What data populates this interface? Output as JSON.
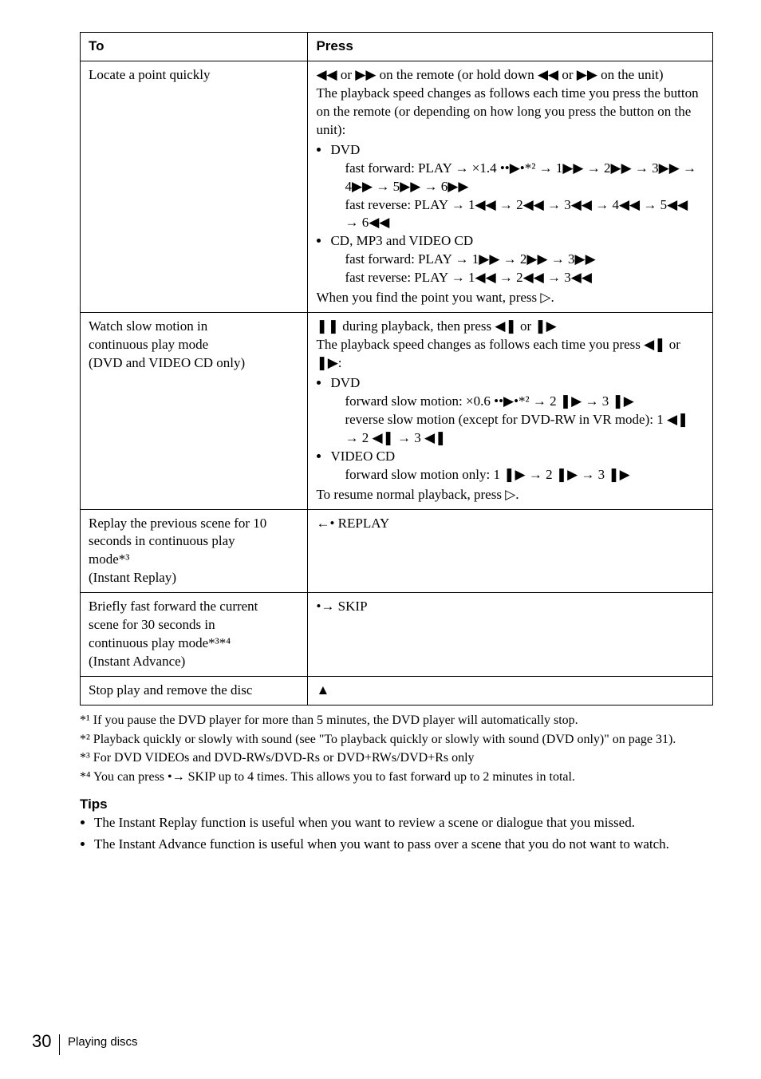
{
  "table": {
    "header": {
      "to": "To",
      "press": "Press"
    },
    "rows": [
      {
        "to": "Locate a point quickly",
        "press_intro1": "◀◀ or ▶▶ on the remote (or hold down ◀◀ or ▶▶ on the unit)",
        "press_intro2": "The playback speed changes as follows each time you press the button on the remote (or depending on how long you press the button on the unit):",
        "bullets": [
          {
            "label": "DVD",
            "lines": [
              "fast forward: PLAY → ×1.4 ••▶•*² → 1▶▶ → 2▶▶ → 3▶▶ → 4▶▶ → 5▶▶ → 6▶▶",
              "fast reverse: PLAY → 1◀◀ → 2◀◀ → 3◀◀ → 4◀◀ → 5◀◀ → 6◀◀"
            ]
          },
          {
            "label": "CD, MP3 and VIDEO CD",
            "lines": [
              "fast forward: PLAY → 1▶▶ → 2▶▶ → 3▶▶",
              "fast reverse: PLAY → 1◀◀ → 2◀◀ → 3◀◀"
            ]
          }
        ],
        "press_outro": "When you find the point you want, press ▷."
      },
      {
        "to_lines": [
          "Watch slow motion in",
          "continuous play mode",
          "(DVD and VIDEO CD only)"
        ],
        "press_intro1": "❚❚ during playback, then press ◀❚ or ❚▶",
        "press_intro2": "The playback speed changes as follows each time you press ◀❚ or ❚▶:",
        "bullets": [
          {
            "label": "DVD",
            "lines": [
              "forward slow motion: ×0.6 ••▶•*² → 2 ❚▶ → 3 ❚▶",
              "reverse slow motion (except for DVD-RW in VR mode): 1 ◀❚ → 2 ◀❚ → 3 ◀❚"
            ]
          },
          {
            "label": "VIDEO CD",
            "lines": [
              "forward slow motion only: 1 ❚▶ → 2 ❚▶ → 3 ❚▶"
            ]
          }
        ],
        "press_outro": "To resume normal playback, press ▷."
      },
      {
        "to_lines": [
          "Replay the previous scene for 10",
          "seconds in continuous play",
          "mode*³",
          "(Instant Replay)"
        ],
        "press_simple": "←• REPLAY"
      },
      {
        "to_lines": [
          "Briefly fast forward the current",
          "scene  for 30 seconds in",
          "continuous play mode*³*⁴",
          "(Instant Advance)"
        ],
        "press_simple": "•→ SKIP"
      },
      {
        "to": "Stop play and remove the disc",
        "press_simple": "▲"
      }
    ]
  },
  "footnotes": [
    "*¹ If you pause the DVD player for more than 5 minutes, the DVD player will automatically stop.",
    "*² Playback quickly or slowly with sound (see \"To playback quickly or slowly with sound (DVD only)\" on page 31).",
    "*³ For DVD VIDEOs and DVD-RWs/DVD-Rs or DVD+RWs/DVD+Rs only",
    "*⁴ You can press •→ SKIP up to 4 times.  This allows you to fast forward up to 2 minutes in total."
  ],
  "tips_heading": "Tips",
  "tips": [
    "The Instant Replay function is useful when you want to review a scene or dialogue that you missed.",
    "The Instant Advance function is useful when you want to pass over a scene that you do not want to watch."
  ],
  "footer": {
    "page": "30",
    "section": "Playing discs"
  }
}
